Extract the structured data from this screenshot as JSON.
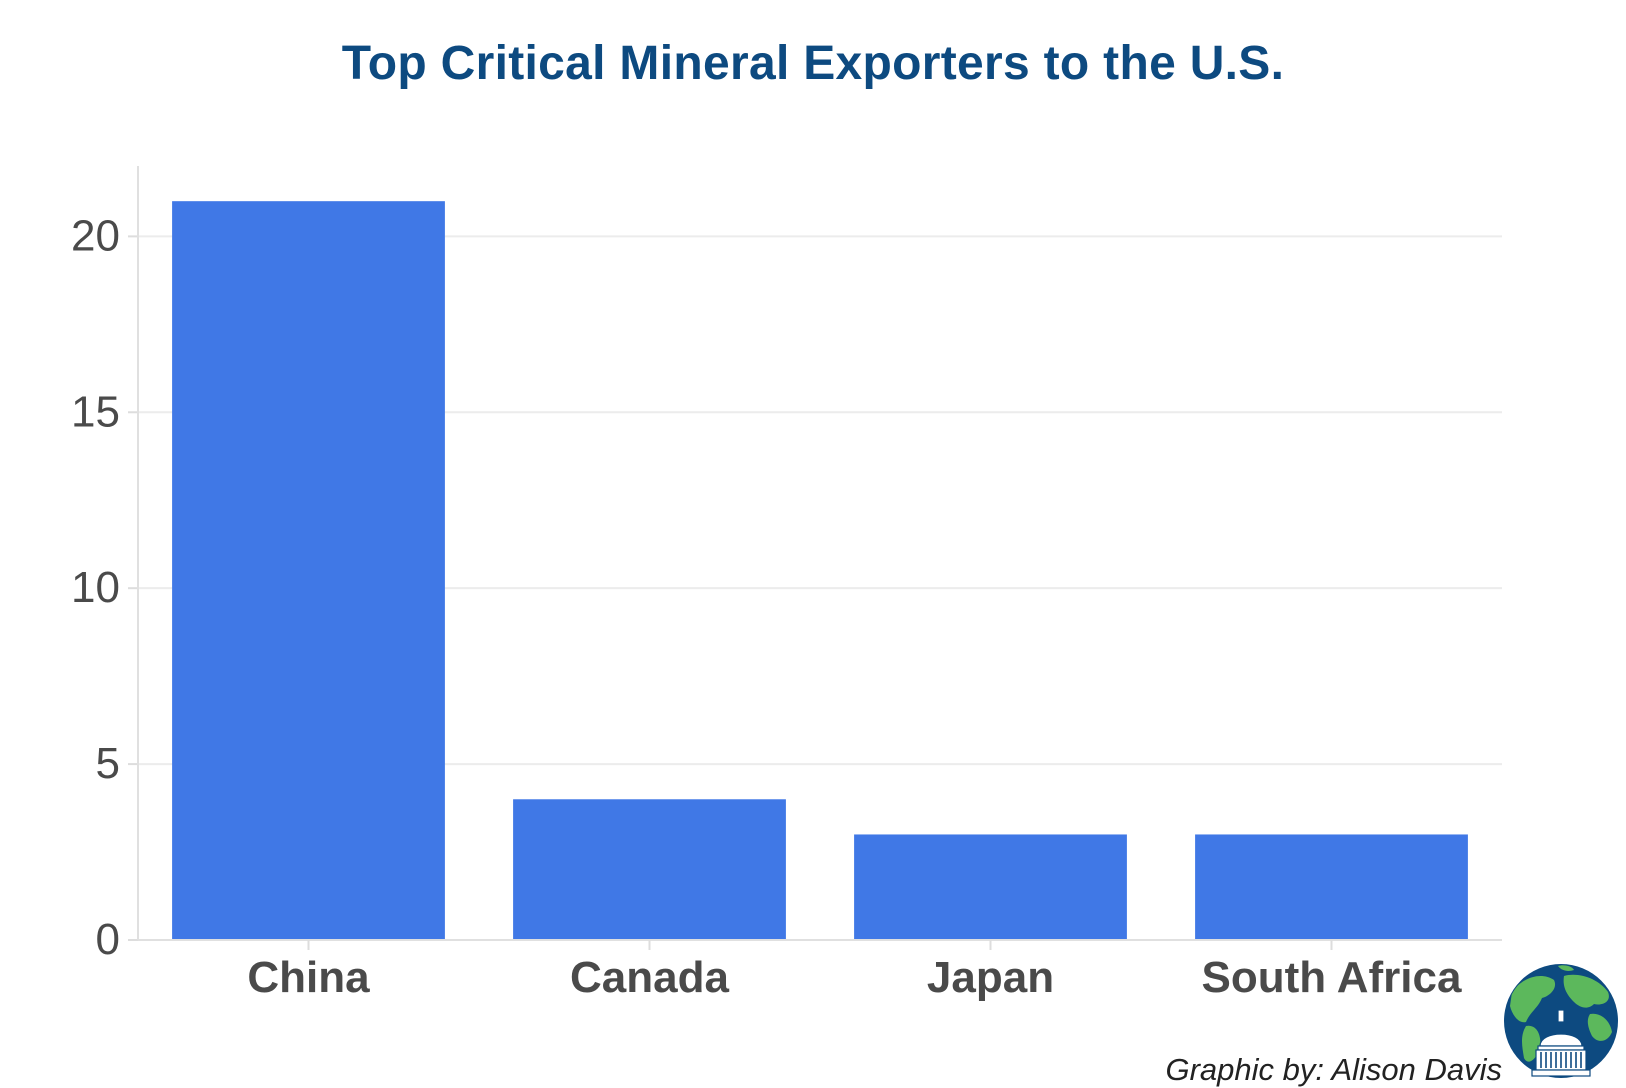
{
  "chart_data": {
    "type": "bar",
    "title": "Top Critical Mineral Exporters to the U.S.",
    "xlabel": "",
    "ylabel": "",
    "categories": [
      "China",
      "Canada",
      "Japan",
      "South Africa"
    ],
    "values": [
      21,
      4,
      3,
      3
    ],
    "ylim": [
      0,
      22
    ],
    "yticks": [
      0,
      5,
      10,
      15,
      20
    ],
    "grid": true,
    "bar_color": "#4078e6"
  },
  "credit": "Graphic by: Alison Davis",
  "logo": {
    "icon": "globe-capitol-icon"
  },
  "colors": {
    "title": "#0d4a80",
    "axis_text": "#4a4a4a"
  }
}
